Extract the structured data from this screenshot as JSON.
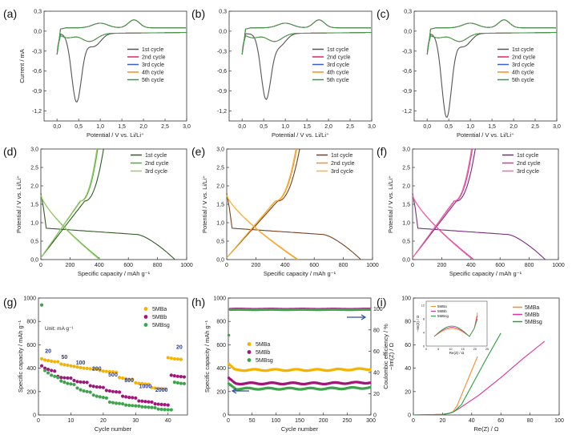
{
  "figure": {
    "description_hidden": false
  },
  "chart_data": [
    {
      "id": "a",
      "type": "line",
      "panel_label": "(a)",
      "xlabel": "Potential / V vs. Li/Li⁺",
      "ylabel": "Current / mA",
      "xlim": [
        -0.3,
        3.0
      ],
      "ylim": [
        -1.35,
        0.3
      ],
      "xticks": [
        0.0,
        0.5,
        1.0,
        1.5,
        2.0,
        2.5,
        3.0
      ],
      "xtick_labels": [
        "0,0",
        "0,5",
        "1,0",
        "1,5",
        "2,0",
        "2,5",
        "3,0"
      ],
      "yticks": [
        0.3,
        0.0,
        -0.3,
        -0.6,
        -0.9,
        -1.2
      ],
      "ytick_labels": [
        "0,3",
        "0,0",
        "-0,3",
        "-0,6",
        "-0,9",
        "-1,2"
      ],
      "show_ylabel": true,
      "legend": [
        "1st cycle",
        "2nd cycle",
        "3rd cycle",
        "4th cycle",
        "5th cycle"
      ],
      "colors": [
        "#555555",
        "#e0245e",
        "#3a5fcd",
        "#f28e2b",
        "#2e9e44"
      ],
      "peak_depth": -1.0,
      "peak_x": 0.45
    },
    {
      "id": "b",
      "type": "line",
      "panel_label": "(b)",
      "xlabel": "Potential / V vs. Li/Li⁺",
      "ylabel": "",
      "xlim": [
        -0.3,
        3.0
      ],
      "ylim": [
        -1.35,
        0.3
      ],
      "xticks": [
        0.0,
        0.5,
        1.0,
        1.5,
        2.0,
        2.5,
        3.0
      ],
      "xtick_labels": [
        "0,0",
        "0,5",
        "1,0",
        "1,5",
        "2,0",
        "2,5",
        "3,0"
      ],
      "yticks": [
        0.3,
        0.0,
        -0.3,
        -0.6,
        -0.9,
        -1.2
      ],
      "ytick_labels": [
        "0,3",
        "0,0",
        "-0,3",
        "-0,6",
        "-0,9",
        "-1,2"
      ],
      "show_ylabel": false,
      "legend": [
        "1st cycle",
        "2nd cycle",
        "3rd cycle",
        "4th cycle",
        "5th cycle"
      ],
      "colors": [
        "#555555",
        "#e0245e",
        "#3a5fcd",
        "#f28e2b",
        "#2e9e44"
      ],
      "peak_depth": -0.92,
      "peak_x": 0.55
    },
    {
      "id": "c",
      "type": "line",
      "panel_label": "(c)",
      "xlabel": "Potential / V vs. Li/Li⁺",
      "ylabel": "",
      "xlim": [
        -0.3,
        3.0
      ],
      "ylim": [
        -1.35,
        0.3
      ],
      "xticks": [
        0.0,
        0.5,
        1.0,
        1.5,
        2.0,
        2.5,
        3.0
      ],
      "xtick_labels": [
        "0,0",
        "0,5",
        "1,0",
        "1,5",
        "2,0",
        "2,5",
        "3,0"
      ],
      "yticks": [
        0.3,
        0.0,
        -0.3,
        -0.6,
        -0.9,
        -1.2
      ],
      "ytick_labels": [
        "0,3",
        "0,0",
        "-0,3",
        "-0,6",
        "-0,9",
        "-1,2"
      ],
      "show_ylabel": false,
      "legend": [
        "1st cycle",
        "2nd cycle",
        "3rd cycle",
        "4th cycle",
        "5th cycle"
      ],
      "colors": [
        "#555555",
        "#e0245e",
        "#3a5fcd",
        "#f28e2b",
        "#2e9e44"
      ],
      "peak_depth": -1.23,
      "peak_x": 0.45
    },
    {
      "id": "d",
      "type": "line",
      "panel_label": "(d)",
      "xlabel": "Specific capacity / mAh g⁻¹",
      "ylabel": "Potential / V vs. Li/Li⁺",
      "xlim": [
        0,
        1000
      ],
      "ylim": [
        0,
        3.0
      ],
      "xticks": [
        0,
        200,
        400,
        600,
        800,
        1000
      ],
      "xtick_labels": [
        "0",
        "200",
        "400",
        "600",
        "800",
        "1000"
      ],
      "yticks": [
        0.0,
        0.5,
        1.0,
        1.5,
        2.0,
        2.5,
        3.0
      ],
      "ytick_labels": [
        "0,0",
        "0,5",
        "1,0",
        "1,5",
        "2,0",
        "2,5",
        "3,0"
      ],
      "show_ylabel": true,
      "legend": [
        "1st cycle",
        "2nd cycle",
        "3rd cycle"
      ],
      "colors": [
        "#2f5d23",
        "#4cae3c",
        "#9ccc65"
      ],
      "cap1_dis": 920,
      "cap1_ch": 430,
      "cap2_dis": 410,
      "cap2_ch": 390
    },
    {
      "id": "e",
      "type": "line",
      "panel_label": "(e)",
      "xlabel": "Specific capacity / mAh g⁻¹",
      "ylabel": "Potential / V vs. Li/Li⁺",
      "xlim": [
        0,
        1000
      ],
      "ylim": [
        0,
        3.0
      ],
      "xticks": [
        0,
        200,
        400,
        600,
        800,
        1000
      ],
      "xtick_labels": [
        "0",
        "200",
        "400",
        "600",
        "800",
        "1000"
      ],
      "yticks": [
        0.0,
        0.5,
        1.0,
        1.5,
        2.0,
        2.5,
        3.0
      ],
      "ytick_labels": [
        "0,0",
        "0,5",
        "1,0",
        "1,5",
        "2,0",
        "2,5",
        "3,0"
      ],
      "show_ylabel": true,
      "legend": [
        "1st cycle",
        "2nd cycle",
        "3rd cycle"
      ],
      "colors": [
        "#7b3f1e",
        "#f28e2b",
        "#f7b733"
      ],
      "cap1_dis": 920,
      "cap1_ch": 500,
      "cap2_dis": 490,
      "cap2_ch": 480
    },
    {
      "id": "f",
      "type": "line",
      "panel_label": "(f)",
      "xlabel": "Specific capacity / mAh g⁻¹",
      "ylabel": "Potential / V vs. Li/Li⁺",
      "xlim": [
        0,
        1000
      ],
      "ylim": [
        0,
        3.0
      ],
      "xticks": [
        0,
        200,
        400,
        600,
        800,
        1000
      ],
      "xtick_labels": [
        "0",
        "200",
        "400",
        "600",
        "800",
        "1000"
      ],
      "yticks": [
        0.0,
        0.5,
        1.0,
        1.5,
        2.0,
        2.5,
        3.0
      ],
      "ytick_labels": [
        "0,0",
        "0,5",
        "1,0",
        "1,5",
        "2,0",
        "2,5",
        "3,0"
      ],
      "show_ylabel": true,
      "legend": [
        "1st cycle",
        "2nd cycle",
        "3rd cycle"
      ],
      "colors": [
        "#7a2b7e",
        "#d6359a",
        "#f06aa8"
      ],
      "cap1_dis": 910,
      "cap1_ch": 430,
      "cap2_dis": 420,
      "cap2_ch": 410
    },
    {
      "id": "g",
      "type": "scatter",
      "panel_label": "(g)",
      "xlabel": "Cycle number",
      "ylabel": "Specific capacity / mAh g⁻¹",
      "xlim": [
        0,
        46
      ],
      "ylim": [
        0,
        1000
      ],
      "xticks": [
        0,
        10,
        20,
        30,
        40
      ],
      "xtick_labels": [
        "0",
        "10",
        "20",
        "30",
        "40"
      ],
      "yticks": [
        0,
        200,
        400,
        600,
        800,
        1000
      ],
      "ytick_labels": [
        "0",
        "200",
        "400",
        "600",
        "800",
        "1000"
      ],
      "unit_note": "Unit: mA g⁻¹",
      "rate_labels": [
        {
          "text": "20",
          "x": 3,
          "y": 530
        },
        {
          "text": "50",
          "x": 8,
          "y": 480
        },
        {
          "text": "100",
          "x": 13,
          "y": 430
        },
        {
          "text": "200",
          "x": 18,
          "y": 380
        },
        {
          "text": "500",
          "x": 23,
          "y": 330
        },
        {
          "text": "800",
          "x": 28,
          "y": 280
        },
        {
          "text": "1000",
          "x": 33,
          "y": 230
        },
        {
          "text": "2000",
          "x": 38,
          "y": 200
        },
        {
          "text": "20",
          "x": 43.5,
          "y": 565
        }
      ],
      "series": [
        {
          "name": "5MBa",
          "color": "#f5b301",
          "values": [
            480,
            470,
            465,
            460,
            455,
            455,
            435,
            430,
            425,
            420,
            415,
            410,
            405,
            400,
            398,
            395,
            392,
            390,
            380,
            375,
            372,
            370,
            368,
            365,
            320,
            315,
            310,
            305,
            305,
            275,
            270,
            268,
            265,
            262,
            235,
            230,
            228,
            225,
            222,
            490,
            485,
            480,
            478,
            475
          ]
        },
        {
          "name": "5MBb",
          "color": "#a0177a",
          "values": [
            420,
            400,
            390,
            380,
            375,
            330,
            320,
            318,
            316,
            315,
            295,
            285,
            282,
            280,
            278,
            250,
            245,
            240,
            238,
            235,
            210,
            205,
            200,
            198,
            195,
            160,
            155,
            150,
            148,
            145,
            120,
            118,
            115,
            112,
            110,
            95,
            92,
            90,
            88,
            85,
            340,
            335,
            330,
            328,
            325
          ]
        },
        {
          "name": "5MBsg",
          "color": "#3fa34d",
          "values": [
            940,
            380,
            360,
            340,
            330,
            320,
            290,
            280,
            270,
            265,
            260,
            230,
            215,
            205,
            200,
            195,
            170,
            160,
            155,
            150,
            145,
            110,
            105,
            100,
            98,
            95,
            85,
            82,
            80,
            78,
            76,
            70,
            68,
            66,
            64,
            62,
            50,
            48,
            46,
            45,
            44,
            280,
            275,
            270,
            268
          ]
        }
      ]
    },
    {
      "id": "h",
      "type": "scatter",
      "panel_label": "(h)",
      "xlabel": "Cycle number",
      "ylabel": "Specific capacity / mAh g⁻¹",
      "ylabel2": "Coulombic efficiency / %",
      "xlim": [
        0,
        300
      ],
      "ylim": [
        0,
        1000
      ],
      "ylim2": [
        0,
        110
      ],
      "xticks": [
        0,
        50,
        100,
        150,
        200,
        250,
        300
      ],
      "xtick_labels": [
        "0",
        "50",
        "100",
        "150",
        "200",
        "250",
        "300"
      ],
      "yticks": [
        0,
        200,
        400,
        600,
        800,
        1000
      ],
      "ytick_labels": [
        "0",
        "200",
        "400",
        "600",
        "800",
        "1000"
      ],
      "yticks2": [
        0,
        20,
        40,
        60,
        80,
        100
      ],
      "ytick2_labels": [
        "0",
        "20",
        "40",
        "60",
        "80",
        "100"
      ],
      "series": [
        {
          "name": "5MBa",
          "color": "#f5b301",
          "start": 440,
          "plateau": 385,
          "ce": 99.5
        },
        {
          "name": "5MBb",
          "color": "#a0177a",
          "start": 320,
          "plateau": 270,
          "ce": 99.8
        },
        {
          "name": "5MBsg",
          "color": "#3fa34d",
          "start": 270,
          "plateau": 225,
          "ce": 99.2
        }
      ]
    },
    {
      "id": "i",
      "type": "line",
      "panel_label": "(i)",
      "xlabel": "Re(Z) / Ω",
      "ylabel": "−Im(Z) / Ω",
      "xlim": [
        0,
        100
      ],
      "ylim": [
        0,
        100
      ],
      "xticks": [
        0,
        20,
        40,
        60,
        80,
        100
      ],
      "xtick_labels": [
        "0",
        "20",
        "40",
        "60",
        "80",
        "100"
      ],
      "yticks": [
        0,
        20,
        40,
        60,
        80,
        100
      ],
      "ytick_labels": [
        "0",
        "20",
        "40",
        "60",
        "80",
        "100"
      ],
      "inset": {
        "xlabel": "Re(Z) / Ω",
        "ylabel": "−Im(Z) / Ω",
        "xticks": [
          "0",
          "5",
          "10",
          "15",
          "20",
          "25"
        ],
        "yticks": [
          "0",
          "4",
          "8",
          "12"
        ]
      },
      "series": [
        {
          "name": "5MBa",
          "color": "#f28e2b",
          "points": [
            [
              0,
              0
            ],
            [
              20,
              0.5
            ],
            [
              24,
              1.2
            ],
            [
              27,
              2.5
            ],
            [
              30,
              8
            ],
            [
              35,
              23
            ],
            [
              40,
              38
            ],
            [
              44,
              50
            ]
          ]
        },
        {
          "name": "5MBb",
          "color": "#d6359a",
          "points": [
            [
              0,
              0
            ],
            [
              20,
              0.5
            ],
            [
              25,
              1.5
            ],
            [
              28,
              3
            ],
            [
              32,
              6
            ],
            [
              45,
              17
            ],
            [
              60,
              32
            ],
            [
              75,
              48
            ],
            [
              90,
              63
            ]
          ]
        },
        {
          "name": "5MBsg",
          "color": "#2e9e44",
          "points": [
            [
              0,
              0
            ],
            [
              20,
              0.5
            ],
            [
              24,
              1.2
            ],
            [
              28,
              3
            ],
            [
              33,
              9
            ],
            [
              40,
              25
            ],
            [
              50,
              48
            ],
            [
              60,
              70
            ]
          ]
        }
      ]
    }
  ]
}
